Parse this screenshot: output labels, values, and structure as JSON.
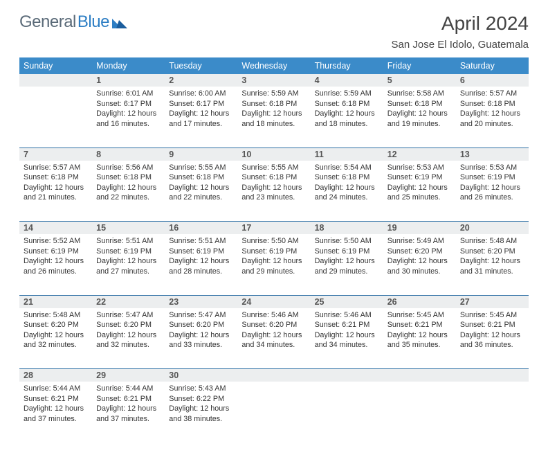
{
  "brand": {
    "part1": "General",
    "part2": "Blue"
  },
  "title": "April 2024",
  "location": "San Jose El Idolo, Guatemala",
  "colors": {
    "header_bg": "#3b8bc9",
    "header_text": "#ffffff",
    "daynum_bg": "#eceeef",
    "row_divider": "#2d6fa5",
    "body_text": "#333333",
    "brand_gray": "#5a6a78",
    "brand_blue": "#2d7ec4"
  },
  "weekdays": [
    "Sunday",
    "Monday",
    "Tuesday",
    "Wednesday",
    "Thursday",
    "Friday",
    "Saturday"
  ],
  "weeks": [
    {
      "nums": [
        "",
        "1",
        "2",
        "3",
        "4",
        "5",
        "6"
      ],
      "cells": [
        null,
        {
          "sunrise": "Sunrise: 6:01 AM",
          "sunset": "Sunset: 6:17 PM",
          "day1": "Daylight: 12 hours",
          "day2": "and 16 minutes."
        },
        {
          "sunrise": "Sunrise: 6:00 AM",
          "sunset": "Sunset: 6:17 PM",
          "day1": "Daylight: 12 hours",
          "day2": "and 17 minutes."
        },
        {
          "sunrise": "Sunrise: 5:59 AM",
          "sunset": "Sunset: 6:18 PM",
          "day1": "Daylight: 12 hours",
          "day2": "and 18 minutes."
        },
        {
          "sunrise": "Sunrise: 5:59 AM",
          "sunset": "Sunset: 6:18 PM",
          "day1": "Daylight: 12 hours",
          "day2": "and 18 minutes."
        },
        {
          "sunrise": "Sunrise: 5:58 AM",
          "sunset": "Sunset: 6:18 PM",
          "day1": "Daylight: 12 hours",
          "day2": "and 19 minutes."
        },
        {
          "sunrise": "Sunrise: 5:57 AM",
          "sunset": "Sunset: 6:18 PM",
          "day1": "Daylight: 12 hours",
          "day2": "and 20 minutes."
        }
      ]
    },
    {
      "nums": [
        "7",
        "8",
        "9",
        "10",
        "11",
        "12",
        "13"
      ],
      "cells": [
        {
          "sunrise": "Sunrise: 5:57 AM",
          "sunset": "Sunset: 6:18 PM",
          "day1": "Daylight: 12 hours",
          "day2": "and 21 minutes."
        },
        {
          "sunrise": "Sunrise: 5:56 AM",
          "sunset": "Sunset: 6:18 PM",
          "day1": "Daylight: 12 hours",
          "day2": "and 22 minutes."
        },
        {
          "sunrise": "Sunrise: 5:55 AM",
          "sunset": "Sunset: 6:18 PM",
          "day1": "Daylight: 12 hours",
          "day2": "and 22 minutes."
        },
        {
          "sunrise": "Sunrise: 5:55 AM",
          "sunset": "Sunset: 6:18 PM",
          "day1": "Daylight: 12 hours",
          "day2": "and 23 minutes."
        },
        {
          "sunrise": "Sunrise: 5:54 AM",
          "sunset": "Sunset: 6:18 PM",
          "day1": "Daylight: 12 hours",
          "day2": "and 24 minutes."
        },
        {
          "sunrise": "Sunrise: 5:53 AM",
          "sunset": "Sunset: 6:19 PM",
          "day1": "Daylight: 12 hours",
          "day2": "and 25 minutes."
        },
        {
          "sunrise": "Sunrise: 5:53 AM",
          "sunset": "Sunset: 6:19 PM",
          "day1": "Daylight: 12 hours",
          "day2": "and 26 minutes."
        }
      ]
    },
    {
      "nums": [
        "14",
        "15",
        "16",
        "17",
        "18",
        "19",
        "20"
      ],
      "cells": [
        {
          "sunrise": "Sunrise: 5:52 AM",
          "sunset": "Sunset: 6:19 PM",
          "day1": "Daylight: 12 hours",
          "day2": "and 26 minutes."
        },
        {
          "sunrise": "Sunrise: 5:51 AM",
          "sunset": "Sunset: 6:19 PM",
          "day1": "Daylight: 12 hours",
          "day2": "and 27 minutes."
        },
        {
          "sunrise": "Sunrise: 5:51 AM",
          "sunset": "Sunset: 6:19 PM",
          "day1": "Daylight: 12 hours",
          "day2": "and 28 minutes."
        },
        {
          "sunrise": "Sunrise: 5:50 AM",
          "sunset": "Sunset: 6:19 PM",
          "day1": "Daylight: 12 hours",
          "day2": "and 29 minutes."
        },
        {
          "sunrise": "Sunrise: 5:50 AM",
          "sunset": "Sunset: 6:19 PM",
          "day1": "Daylight: 12 hours",
          "day2": "and 29 minutes."
        },
        {
          "sunrise": "Sunrise: 5:49 AM",
          "sunset": "Sunset: 6:20 PM",
          "day1": "Daylight: 12 hours",
          "day2": "and 30 minutes."
        },
        {
          "sunrise": "Sunrise: 5:48 AM",
          "sunset": "Sunset: 6:20 PM",
          "day1": "Daylight: 12 hours",
          "day2": "and 31 minutes."
        }
      ]
    },
    {
      "nums": [
        "21",
        "22",
        "23",
        "24",
        "25",
        "26",
        "27"
      ],
      "cells": [
        {
          "sunrise": "Sunrise: 5:48 AM",
          "sunset": "Sunset: 6:20 PM",
          "day1": "Daylight: 12 hours",
          "day2": "and 32 minutes."
        },
        {
          "sunrise": "Sunrise: 5:47 AM",
          "sunset": "Sunset: 6:20 PM",
          "day1": "Daylight: 12 hours",
          "day2": "and 32 minutes."
        },
        {
          "sunrise": "Sunrise: 5:47 AM",
          "sunset": "Sunset: 6:20 PM",
          "day1": "Daylight: 12 hours",
          "day2": "and 33 minutes."
        },
        {
          "sunrise": "Sunrise: 5:46 AM",
          "sunset": "Sunset: 6:20 PM",
          "day1": "Daylight: 12 hours",
          "day2": "and 34 minutes."
        },
        {
          "sunrise": "Sunrise: 5:46 AM",
          "sunset": "Sunset: 6:21 PM",
          "day1": "Daylight: 12 hours",
          "day2": "and 34 minutes."
        },
        {
          "sunrise": "Sunrise: 5:45 AM",
          "sunset": "Sunset: 6:21 PM",
          "day1": "Daylight: 12 hours",
          "day2": "and 35 minutes."
        },
        {
          "sunrise": "Sunrise: 5:45 AM",
          "sunset": "Sunset: 6:21 PM",
          "day1": "Daylight: 12 hours",
          "day2": "and 36 minutes."
        }
      ]
    },
    {
      "nums": [
        "28",
        "29",
        "30",
        "",
        "",
        "",
        ""
      ],
      "cells": [
        {
          "sunrise": "Sunrise: 5:44 AM",
          "sunset": "Sunset: 6:21 PM",
          "day1": "Daylight: 12 hours",
          "day2": "and 37 minutes."
        },
        {
          "sunrise": "Sunrise: 5:44 AM",
          "sunset": "Sunset: 6:21 PM",
          "day1": "Daylight: 12 hours",
          "day2": "and 37 minutes."
        },
        {
          "sunrise": "Sunrise: 5:43 AM",
          "sunset": "Sunset: 6:22 PM",
          "day1": "Daylight: 12 hours",
          "day2": "and 38 minutes."
        },
        null,
        null,
        null,
        null
      ]
    }
  ]
}
